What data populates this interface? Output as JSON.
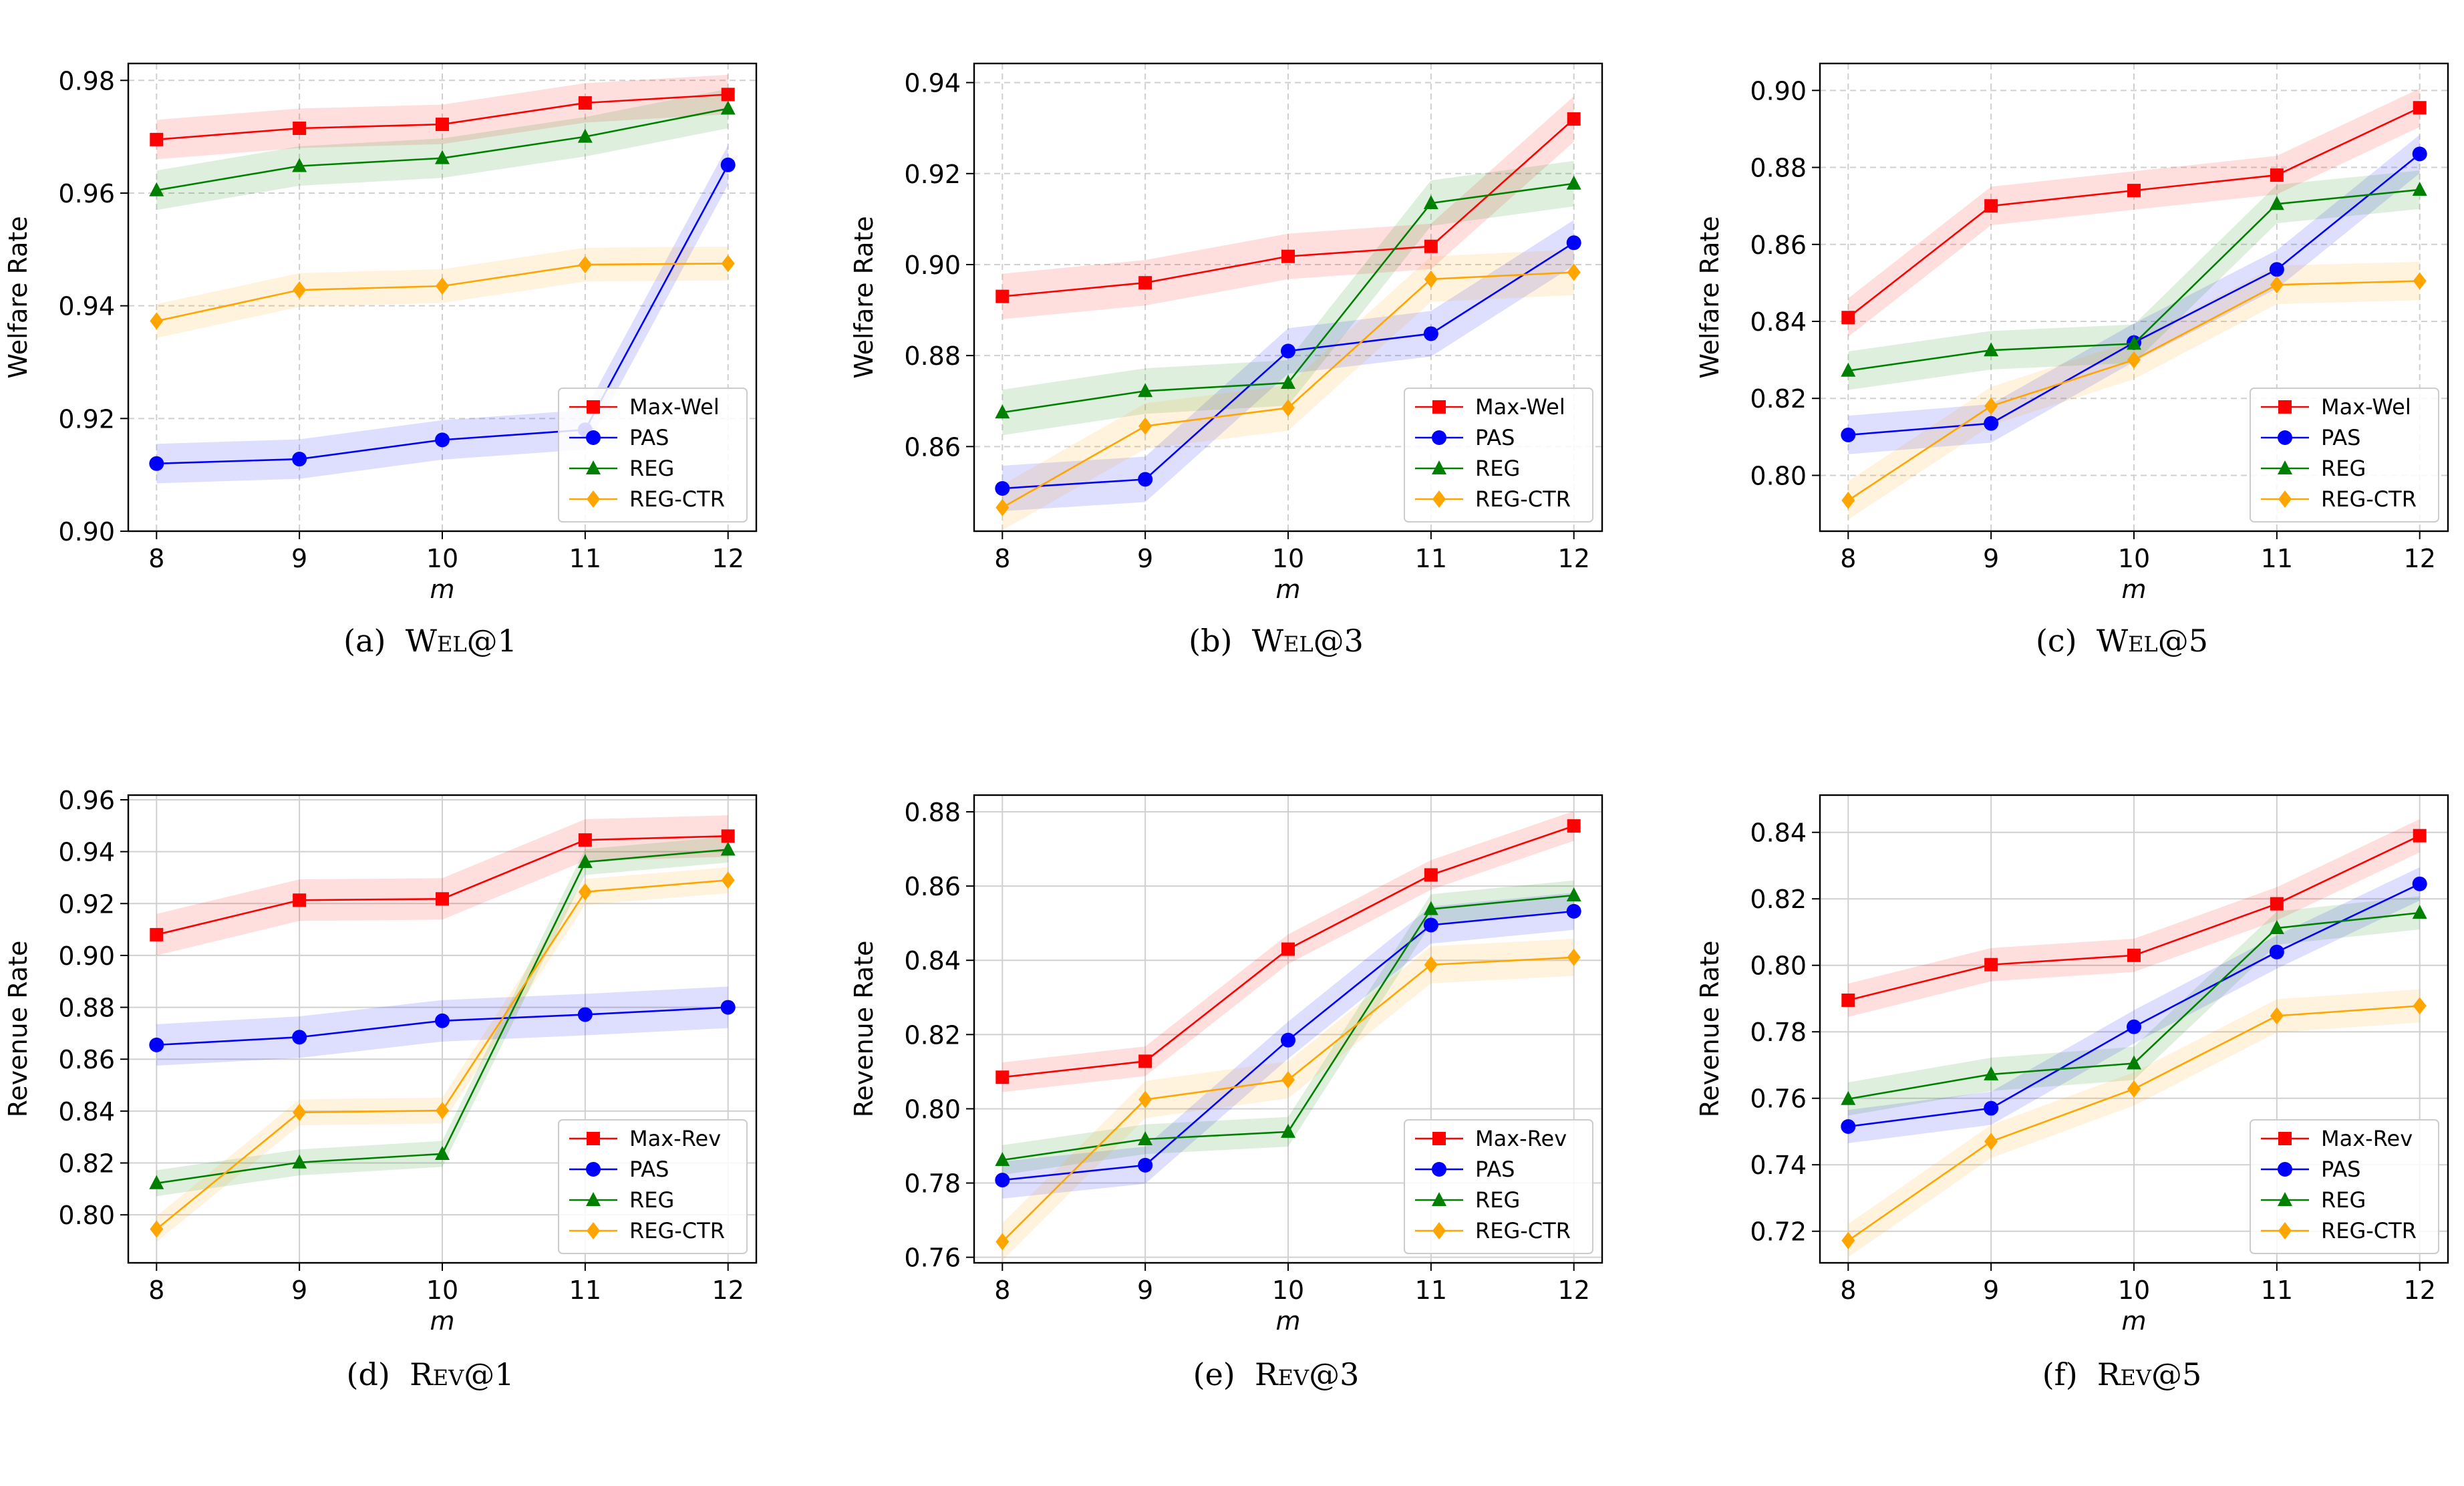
{
  "chart_data": [
    {
      "type": "line",
      "id": "a",
      "caption_label": "(a)",
      "caption_metric": "Wel@1",
      "xlabel": "m",
      "ylabel": "Welfare Rate",
      "x": [
        8,
        9,
        10,
        11,
        12
      ],
      "xticks": [
        "8",
        "9",
        "10",
        "11",
        "12"
      ],
      "ylim": [
        0.9,
        0.983
      ],
      "yticks": [
        0.9,
        0.92,
        0.94,
        0.96,
        0.98
      ],
      "ytick_labels": [
        "0.90",
        "0.92",
        "0.94",
        "0.96",
        "0.98"
      ],
      "grid": "dashed",
      "legend_position": "lower-right",
      "series": [
        {
          "name": "Max-Wel",
          "values": [
            0.9695,
            0.9715,
            0.9722,
            0.976,
            0.9775
          ],
          "band": 0.0035
        },
        {
          "name": "PAS",
          "values": [
            0.912,
            0.9128,
            0.9162,
            0.918,
            0.965
          ],
          "band": 0.0035
        },
        {
          "name": "REG",
          "values": [
            0.9605,
            0.9648,
            0.9662,
            0.97,
            0.975
          ],
          "band": 0.0035
        },
        {
          "name": "REG-CTR",
          "values": [
            0.9373,
            0.9428,
            0.9435,
            0.9473,
            0.9475
          ],
          "band": 0.003
        }
      ]
    },
    {
      "type": "line",
      "id": "b",
      "caption_label": "(b)",
      "caption_metric": "Wel@3",
      "xlabel": "m",
      "ylabel": "Welfare Rate",
      "x": [
        8,
        9,
        10,
        11,
        12
      ],
      "xticks": [
        "8",
        "9",
        "10",
        "11",
        "12"
      ],
      "ylim": [
        0.8414,
        0.9442
      ],
      "yticks": [
        0.86,
        0.88,
        0.9,
        0.92,
        0.94
      ],
      "ytick_labels": [
        "0.86",
        "0.88",
        "0.90",
        "0.92",
        "0.94"
      ],
      "grid": "dashed",
      "legend_position": "lower-right",
      "series": [
        {
          "name": "Max-Wel",
          "values": [
            0.893,
            0.896,
            0.9018,
            0.904,
            0.932
          ],
          "band": 0.005
        },
        {
          "name": "PAS",
          "values": [
            0.8508,
            0.8528,
            0.881,
            0.8848,
            0.9048
          ],
          "band": 0.005
        },
        {
          "name": "REG",
          "values": [
            0.8675,
            0.8722,
            0.874,
            0.9135,
            0.9178
          ],
          "band": 0.005
        },
        {
          "name": "REG-CTR",
          "values": [
            0.8466,
            0.8645,
            0.8685,
            0.8968,
            0.8983
          ],
          "band": 0.005
        }
      ]
    },
    {
      "type": "line",
      "id": "c",
      "caption_label": "(c)",
      "caption_metric": "Wel@5",
      "xlabel": "m",
      "ylabel": "Welfare Rate",
      "x": [
        8,
        9,
        10,
        11,
        12
      ],
      "xticks": [
        "8",
        "9",
        "10",
        "11",
        "12"
      ],
      "ylim": [
        0.7855,
        0.907
      ],
      "yticks": [
        0.8,
        0.82,
        0.84,
        0.86,
        0.88,
        0.9
      ],
      "ytick_labels": [
        "0.80",
        "0.82",
        "0.84",
        "0.86",
        "0.88",
        "0.90"
      ],
      "grid": "dashed",
      "legend_position": "lower-right",
      "series": [
        {
          "name": "Max-Wel",
          "values": [
            0.841,
            0.87,
            0.874,
            0.878,
            0.8955
          ],
          "band": 0.005
        },
        {
          "name": "PAS",
          "values": [
            0.8105,
            0.8135,
            0.8345,
            0.8535,
            0.8835
          ],
          "band": 0.005
        },
        {
          "name": "REG",
          "values": [
            0.8272,
            0.8325,
            0.8342,
            0.8705,
            0.8742
          ],
          "band": 0.005
        },
        {
          "name": "REG-CTR",
          "values": [
            0.7935,
            0.818,
            0.83,
            0.8495,
            0.8505
          ],
          "band": 0.005
        }
      ]
    },
    {
      "type": "line",
      "id": "d",
      "caption_label": "(d)",
      "caption_metric": "Rev@1",
      "xlabel": "m",
      "ylabel": "Revenue Rate",
      "x": [
        8,
        9,
        10,
        11,
        12
      ],
      "xticks": [
        "8",
        "9",
        "10",
        "11",
        "12"
      ],
      "ylim": [
        0.7815,
        0.9618
      ],
      "yticks": [
        0.8,
        0.82,
        0.84,
        0.86,
        0.88,
        0.9,
        0.92,
        0.94,
        0.96
      ],
      "ytick_labels": [
        "0.80",
        "0.82",
        "0.84",
        "0.86",
        "0.88",
        "0.90",
        "0.92",
        "0.94",
        "0.96"
      ],
      "grid": "solid",
      "legend_position": "lower-right",
      "series": [
        {
          "name": "Max-Rev",
          "values": [
            0.908,
            0.9213,
            0.9218,
            0.9445,
            0.946
          ],
          "band": 0.008
        },
        {
          "name": "PAS",
          "values": [
            0.8655,
            0.8685,
            0.8748,
            0.8772,
            0.88
          ],
          "band": 0.008
        },
        {
          "name": "REG",
          "values": [
            0.8122,
            0.8202,
            0.8235,
            0.936,
            0.9408
          ],
          "band": 0.005
        },
        {
          "name": "REG-CTR",
          "values": [
            0.7945,
            0.8395,
            0.8402,
            0.9245,
            0.929
          ],
          "band": 0.005
        }
      ]
    },
    {
      "type": "line",
      "id": "e",
      "caption_label": "(e)",
      "caption_metric": "Rev@3",
      "xlabel": "m",
      "ylabel": "Revenue Rate",
      "x": [
        8,
        9,
        10,
        11,
        12
      ],
      "xticks": [
        "8",
        "9",
        "10",
        "11",
        "12"
      ],
      "ylim": [
        0.7585,
        0.8845
      ],
      "yticks": [
        0.76,
        0.78,
        0.8,
        0.82,
        0.84,
        0.86,
        0.88
      ],
      "ytick_labels": [
        "0.76",
        "0.78",
        "0.80",
        "0.82",
        "0.84",
        "0.86",
        "0.88"
      ],
      "grid": "solid",
      "legend_position": "lower-right",
      "series": [
        {
          "name": "Max-Rev",
          "values": [
            0.8085,
            0.8128,
            0.843,
            0.863,
            0.8762
          ],
          "band": 0.004
        },
        {
          "name": "PAS",
          "values": [
            0.7808,
            0.7848,
            0.8185,
            0.8495,
            0.8532
          ],
          "band": 0.005
        },
        {
          "name": "REG",
          "values": [
            0.7862,
            0.7918,
            0.7938,
            0.8538,
            0.8575
          ],
          "band": 0.004
        },
        {
          "name": "REG-CTR",
          "values": [
            0.7642,
            0.8025,
            0.8078,
            0.8388,
            0.8408
          ],
          "band": 0.005
        }
      ]
    },
    {
      "type": "line",
      "id": "f",
      "caption_label": "(f)",
      "caption_metric": "Rev@5",
      "xlabel": "m",
      "ylabel": "Revenue Rate",
      "x": [
        8,
        9,
        10,
        11,
        12
      ],
      "xticks": [
        "8",
        "9",
        "10",
        "11",
        "12"
      ],
      "ylim": [
        0.7105,
        0.8512
      ],
      "yticks": [
        0.72,
        0.74,
        0.76,
        0.78,
        0.8,
        0.82,
        0.84
      ],
      "ytick_labels": [
        "0.72",
        "0.74",
        "0.76",
        "0.78",
        "0.80",
        "0.82",
        "0.84"
      ],
      "grid": "solid",
      "legend_position": "lower-right",
      "series": [
        {
          "name": "Max-Rev",
          "values": [
            0.7895,
            0.8002,
            0.803,
            0.8185,
            0.839
          ],
          "band": 0.005
        },
        {
          "name": "PAS",
          "values": [
            0.7515,
            0.757,
            0.7815,
            0.804,
            0.8245
          ],
          "band": 0.005
        },
        {
          "name": "REG",
          "values": [
            0.7598,
            0.7672,
            0.7705,
            0.8112,
            0.8158
          ],
          "band": 0.005
        },
        {
          "name": "REG-CTR",
          "values": [
            0.7172,
            0.747,
            0.7628,
            0.7848,
            0.7878
          ],
          "band": 0.005
        }
      ]
    }
  ],
  "series_styles": [
    {
      "color": "#ff0000",
      "marker": "square"
    },
    {
      "color": "#0000ff",
      "marker": "circle"
    },
    {
      "color": "#008000",
      "marker": "triangle"
    },
    {
      "color": "#ffa500",
      "marker": "diamond"
    }
  ]
}
